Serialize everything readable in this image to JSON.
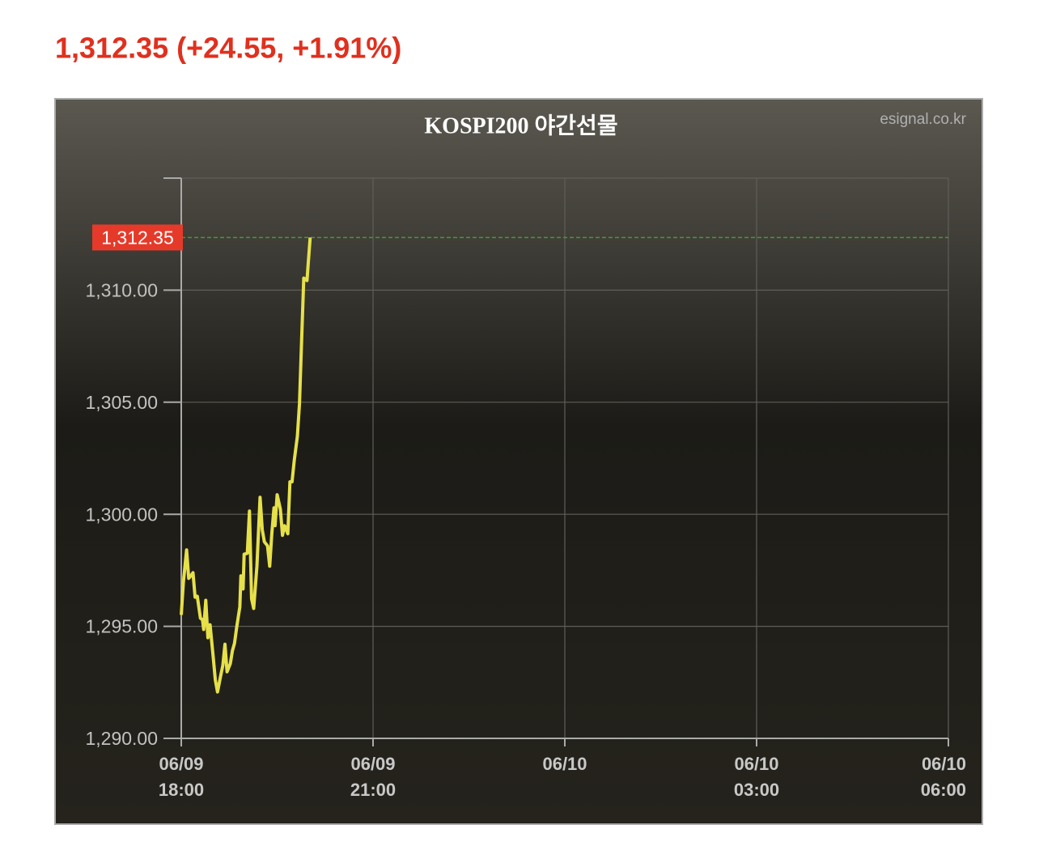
{
  "chart_data": {
    "type": "line",
    "headline": "1,312.35 (+24.55, +1.91%)",
    "title": "KOSPI200 야간선물",
    "source": "esignal.co.kr",
    "x": [
      "06/09 18:00",
      "06/09 18:02",
      "06/09 18:05",
      "06/09 18:07",
      "06/09 18:09",
      "06/09 18:11",
      "06/09 18:13",
      "06/09 18:15",
      "06/09 18:18",
      "06/09 18:20",
      "06/09 18:21",
      "06/09 18:23",
      "06/09 18:25",
      "06/09 18:27",
      "06/09 18:30",
      "06/09 18:32",
      "06/09 18:34",
      "06/09 18:37",
      "06/09 18:39",
      "06/09 18:41",
      "06/09 18:43",
      "06/09 18:46",
      "06/09 18:48",
      "06/09 18:50",
      "06/09 18:52",
      "06/09 18:55",
      "06/09 18:56",
      "06/09 18:58",
      "06/09 18:59",
      "06/09 19:02",
      "06/09 19:04",
      "06/09 19:06",
      "06/09 19:08",
      "06/09 19:11",
      "06/09 19:14",
      "06/09 19:16",
      "06/09 19:18",
      "06/09 19:21",
      "06/09 19:23",
      "06/09 19:25",
      "06/09 19:27",
      "06/09 19:28",
      "06/09 19:30",
      "06/09 19:33",
      "06/09 19:35",
      "06/09 19:37",
      "06/09 19:40",
      "06/09 19:42",
      "06/09 19:44",
      "06/09 19:46",
      "06/09 19:49",
      "06/09 19:51",
      "06/09 19:53",
      "06/09 19:55",
      "06/09 19:58",
      "06/09 19:59",
      "06/09 20:01"
    ],
    "series": [
      {
        "name": "KOSPI200 야간선물",
        "color": "#e6e04a",
        "values": [
          1295.51,
          1296.96,
          1298.41,
          1297.14,
          1297.25,
          1297.39,
          1296.3,
          1296.34,
          1295.36,
          1295.29,
          1294.86,
          1296.16,
          1294.49,
          1295.07,
          1293.62,
          1292.61,
          1292.07,
          1292.79,
          1293.26,
          1294.2,
          1292.97,
          1293.33,
          1293.91,
          1294.24,
          1294.96,
          1295.87,
          1297.25,
          1296.67,
          1298.22,
          1298.26,
          1300.14,
          1296.23,
          1295.8,
          1297.68,
          1300.76,
          1299.31,
          1298.77,
          1298.59,
          1297.68,
          1299.13,
          1300.29,
          1299.49,
          1300.87,
          1300.22,
          1299.06,
          1299.49,
          1299.13,
          1301.45,
          1301.45,
          1302.39,
          1303.48,
          1304.93,
          1307.83,
          1310.54,
          1310.43,
          1311.09,
          1312.35
        ]
      }
    ],
    "last_value": {
      "value": 1312.35,
      "label": "1,312.35",
      "color": "#e53a2a",
      "line_color": "#3f9a3a"
    },
    "xlim": [
      "06/09 18:00",
      "06/10 06:00"
    ],
    "xticks": [
      {
        "value": "06/09 18:00",
        "label": [
          "06/09",
          "18:00"
        ]
      },
      {
        "value": "06/09 21:00",
        "label": [
          "06/09",
          "21:00"
        ]
      },
      {
        "value": "06/10 00:00",
        "label": [
          "06/10"
        ]
      },
      {
        "value": "06/10 03:00",
        "label": [
          "06/10",
          "03:00"
        ]
      },
      {
        "value": "06/10 06:00",
        "label": [
          "06/10",
          "06:00"
        ]
      }
    ],
    "ylim": [
      1290,
      1315
    ],
    "yticks": [
      {
        "value": 1290,
        "label": "1,290.00"
      },
      {
        "value": 1295,
        "label": "1,295.00"
      },
      {
        "value": 1300,
        "label": "1,300.00"
      },
      {
        "value": 1305,
        "label": "1,305.00"
      },
      {
        "value": 1310,
        "label": "1,310.00"
      },
      1315
    ],
    "grid": true
  }
}
